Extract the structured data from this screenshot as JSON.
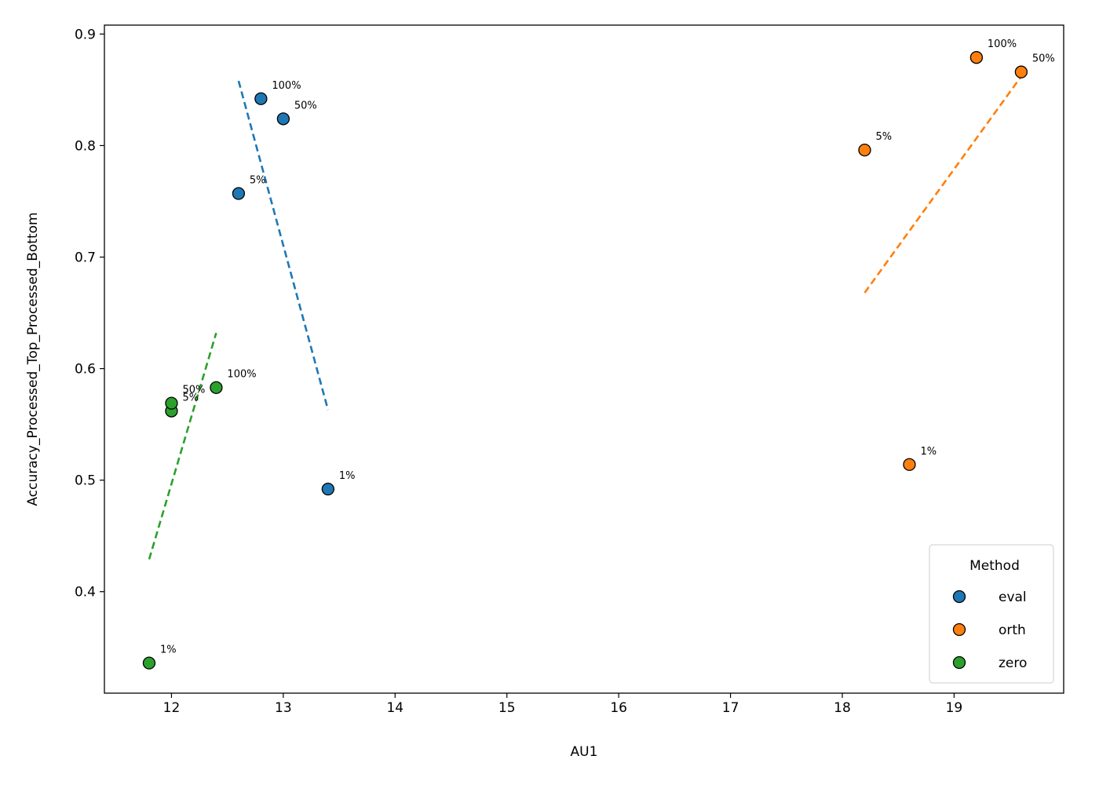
{
  "chart_data": {
    "type": "scatter",
    "xlabel": "AU1",
    "ylabel": "Accuracy_Processed_Top_Processed_Bottom",
    "xlim": [
      11.4,
      19.98
    ],
    "ylim": [
      0.309,
      0.908
    ],
    "xticks": [
      12,
      13,
      14,
      15,
      16,
      17,
      18,
      19
    ],
    "yticks": [
      0.4,
      0.5,
      0.6,
      0.7,
      0.8,
      0.9
    ],
    "grid": false,
    "legend": {
      "title": "Method",
      "position": "lower-right"
    },
    "series": [
      {
        "name": "eval",
        "color": "#1f77b4",
        "points": [
          {
            "x": 13.4,
            "y": 0.492,
            "label": "1%"
          },
          {
            "x": 12.6,
            "y": 0.757,
            "label": "5%"
          },
          {
            "x": 13.0,
            "y": 0.824,
            "label": "50%"
          },
          {
            "x": 12.8,
            "y": 0.842,
            "label": "100%"
          }
        ],
        "trend": {
          "x": [
            12.6,
            13.4
          ],
          "y": [
            0.858,
            0.563
          ]
        }
      },
      {
        "name": "orth",
        "color": "#ff7f0e",
        "points": [
          {
            "x": 18.6,
            "y": 0.514,
            "label": "1%"
          },
          {
            "x": 18.2,
            "y": 0.796,
            "label": "5%"
          },
          {
            "x": 19.6,
            "y": 0.866,
            "label": "50%"
          },
          {
            "x": 19.2,
            "y": 0.879,
            "label": "100%"
          }
        ],
        "trend": {
          "x": [
            18.2,
            19.6
          ],
          "y": [
            0.668,
            0.862
          ]
        }
      },
      {
        "name": "zero",
        "color": "#2ca02c",
        "points": [
          {
            "x": 11.8,
            "y": 0.336,
            "label": "1%"
          },
          {
            "x": 12.0,
            "y": 0.562,
            "label": "5%"
          },
          {
            "x": 12.0,
            "y": 0.569,
            "label": "50%"
          },
          {
            "x": 12.4,
            "y": 0.583,
            "label": "100%"
          }
        ],
        "trend": {
          "x": [
            11.8,
            12.4
          ],
          "y": [
            0.429,
            0.632
          ]
        }
      }
    ]
  }
}
